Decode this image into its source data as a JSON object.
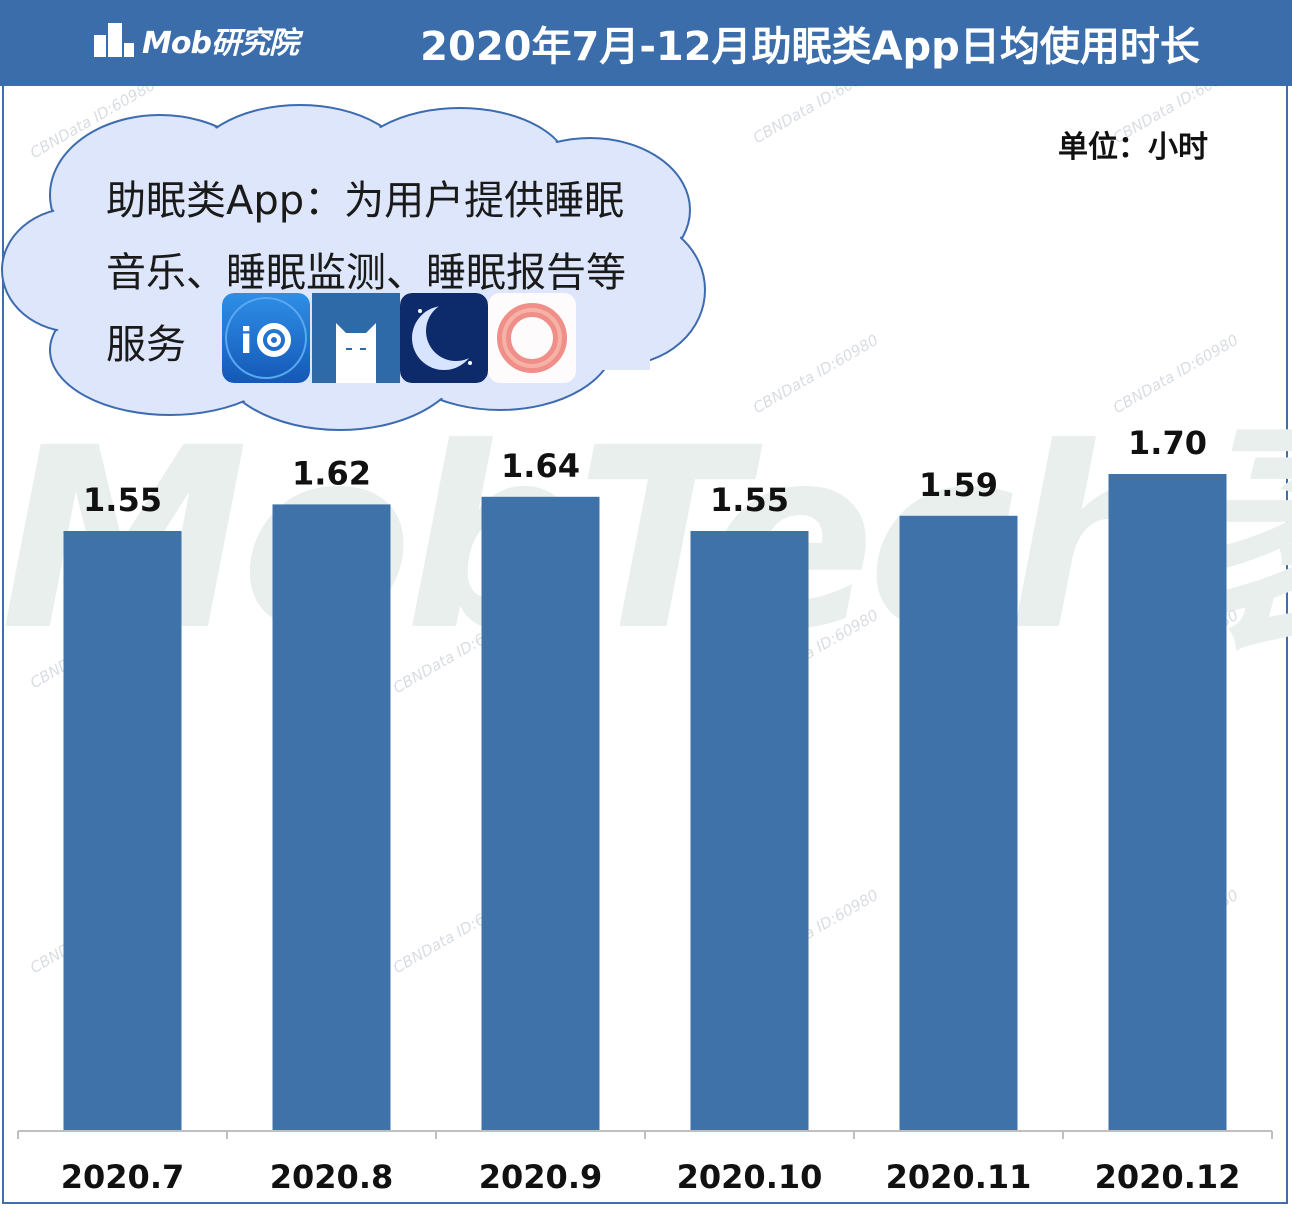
{
  "header": {
    "logo_text": "Mob研究院",
    "title": "2020年7月-12月助眠类App日均使用时长"
  },
  "unit_label": "单位：小时",
  "watermark": {
    "big_text": "MobTech袤博",
    "small_text": "CBNData ID:60980"
  },
  "callout": {
    "lines": [
      "助眠类App：为用户提供睡眠",
      "音乐、睡眠监测、睡眠报告等",
      "服务"
    ],
    "app_icons": [
      "snail-sleep-app-icon",
      "cat-sleep-app-icon",
      "moon-sleep-app-icon",
      "ring-sleep-app-icon"
    ]
  },
  "colors": {
    "header_bg": "#3b6dab",
    "bar": "#4072aa",
    "cloud_fill": "#dde6fa",
    "cloud_stroke": "#3d6bb0"
  },
  "chart_data": {
    "type": "bar",
    "title": "2020年7月-12月助眠类App日均使用时长",
    "ylabel": "单位：小时",
    "categories": [
      "2020.7",
      "2020.8",
      "2020.9",
      "2020.10",
      "2020.11",
      "2020.12"
    ],
    "values": [
      1.55,
      1.62,
      1.64,
      1.55,
      1.59,
      1.7
    ],
    "value_labels": [
      "1.55",
      "1.62",
      "1.64",
      "1.55",
      "1.59",
      "1.70"
    ],
    "grid": false,
    "legend": "none"
  }
}
